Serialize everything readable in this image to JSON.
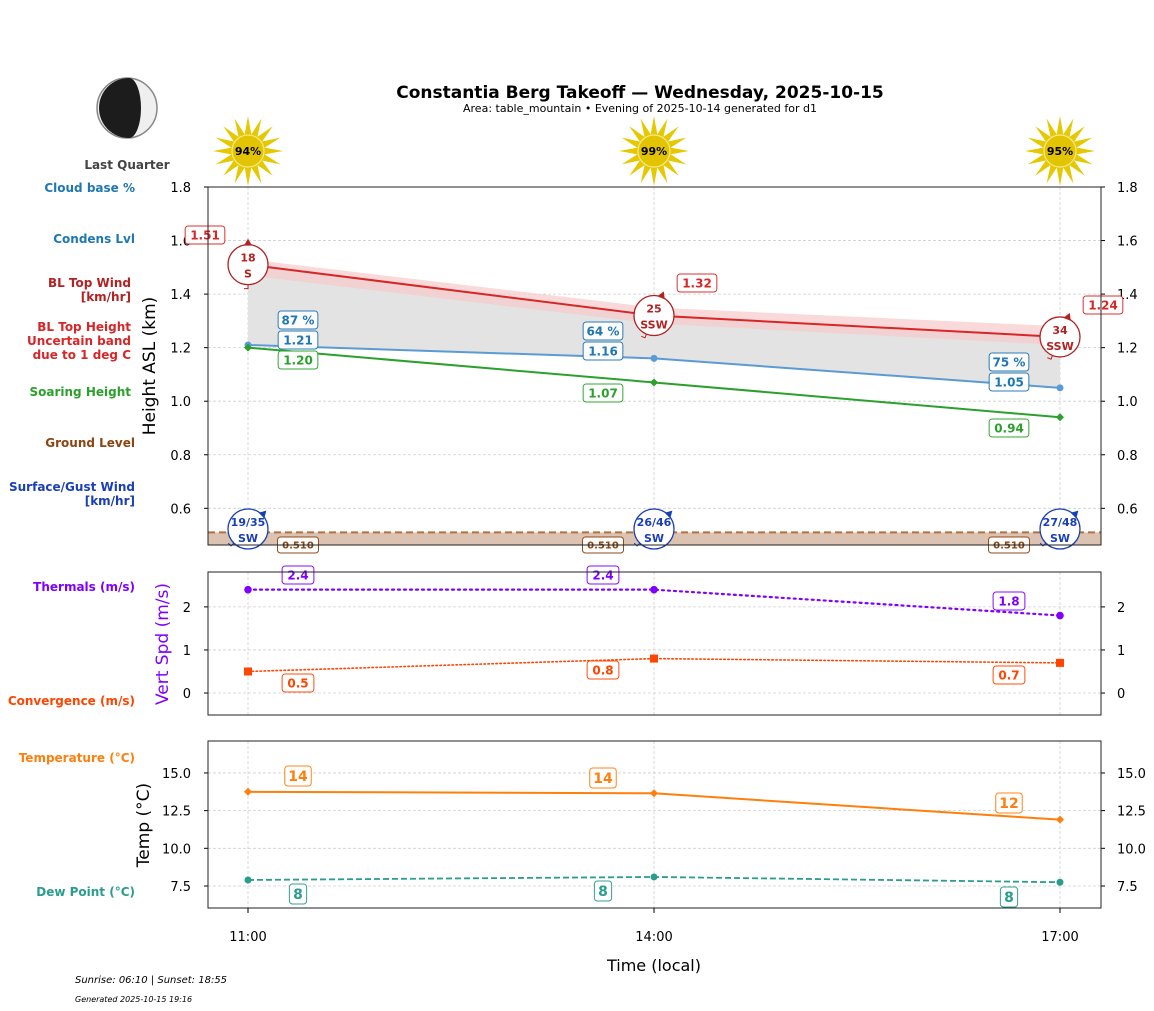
{
  "header": {
    "title": "Constantia Berg Takeoff — Wednesday, 2025-10-15",
    "subtitle": "Area: table_mountain • Evening of 2025-10-14 generated for d1",
    "moon_phase": "Last Quarter",
    "moon_icon": "moon-last-quarter-icon"
  },
  "row_labels": {
    "cloud_base": "Cloud base %",
    "condens": "Condens Lvl",
    "bl_wind_1": "BL Top Wind",
    "bl_wind_2": "[km/hr]",
    "bl_height_1": "BL Top Height",
    "bl_height_2": "Uncertain band",
    "bl_height_3": "due to 1 deg C",
    "soaring": "Soaring Height",
    "ground": "Ground Level",
    "surface_1": "Surface/Gust Wind",
    "surface_2": "[km/hr]",
    "thermals": "Thermals (m/s)",
    "convergence": "Convergence (m/s)",
    "temperature": "Temperature (°C)",
    "dewpoint": "Dew Point (°C)"
  },
  "colors": {
    "bl_top": "#d62728",
    "bl_band": "#f7c9c9",
    "condens": "#1f77b4",
    "condens_line": "#5b9bd5",
    "soaring": "#2ca02c",
    "ground": "#8b4513",
    "ground_fill": "#dcc2b0",
    "surface_wind": "#1a3fb5",
    "bl_wind": "#b22222",
    "thermals": "#7f00ff",
    "convergence": "#ff4500",
    "temperature": "#ff7f0e",
    "dewpoint": "#2a9d8f",
    "sun": "#e6c800",
    "grey_fill": "#e3e3e3"
  },
  "footer": {
    "sun_times": "Sunrise: 06:10 | Sunset: 18:55",
    "generated": "Generated 2025-10-15 19:16"
  },
  "chart_data": [
    {
      "type": "line",
      "name": "height-chart",
      "ylabel": "Height ASL (km)",
      "x": [
        "11:00",
        "14:00",
        "17:00"
      ],
      "ylim": [
        0.463,
        1.8
      ],
      "yticks": [
        "1.8",
        "1.6",
        "1.4",
        "1.2",
        "1.0",
        "0.8",
        "0.6"
      ],
      "ytick_values": [
        1.8,
        1.6,
        1.4,
        1.2,
        1.0,
        0.8,
        0.6
      ],
      "grid": true,
      "sun_percent": [
        "94%",
        "99%",
        "95%"
      ],
      "series": [
        {
          "name": "BL Top Height",
          "values": [
            1.51,
            1.32,
            1.24
          ],
          "labels": [
            "1.51",
            "1.32",
            "1.24"
          ],
          "band_upper": [
            1.53,
            1.35,
            1.28
          ],
          "band_lower": [
            1.47,
            1.29,
            1.21
          ]
        },
        {
          "name": "Condens Lvl",
          "values": [
            1.21,
            1.16,
            1.05
          ],
          "labels": [
            "1.21",
            "1.16",
            "1.05"
          ]
        },
        {
          "name": "Cloud base %",
          "values": [
            87,
            64,
            75
          ],
          "labels": [
            "87 %",
            "64 %",
            "75 %"
          ]
        },
        {
          "name": "Soaring Height",
          "values": [
            1.2,
            1.07,
            0.94
          ],
          "labels": [
            "1.20",
            "1.07",
            "0.94"
          ]
        },
        {
          "name": "Ground Level",
          "values": [
            0.51,
            0.51,
            0.51
          ],
          "labels": [
            "0.510",
            "0.510",
            "0.510"
          ]
        }
      ],
      "bl_top_wind": [
        {
          "speed": "18",
          "dir": "S",
          "deg": 180
        },
        {
          "speed": "25",
          "dir": "SSW",
          "deg": 202
        },
        {
          "speed": "34",
          "dir": "SSW",
          "deg": 202
        }
      ],
      "surface_wind": [
        {
          "speed": "19/35",
          "dir": "SW",
          "deg": 225
        },
        {
          "speed": "26/46",
          "dir": "SW",
          "deg": 225
        },
        {
          "speed": "27/48",
          "dir": "SW",
          "deg": 225
        }
      ]
    },
    {
      "type": "line",
      "name": "vertspeed-chart",
      "ylabel": "Vert Spd (m/s)",
      "x": [
        "11:00",
        "14:00",
        "17:00"
      ],
      "ylim": [
        -0.51,
        2.81
      ],
      "yticks": [
        "2",
        "1",
        "0"
      ],
      "ytick_values": [
        2,
        1,
        0
      ],
      "grid": true,
      "series": [
        {
          "name": "Thermals (m/s)",
          "values": [
            2.4,
            2.4,
            1.8
          ],
          "labels": [
            "2.4",
            "2.4",
            "1.8"
          ]
        },
        {
          "name": "Convergence (m/s)",
          "values": [
            0.5,
            0.8,
            0.7
          ],
          "labels": [
            "0.5",
            "0.8",
            "0.7"
          ]
        }
      ]
    },
    {
      "type": "line",
      "name": "temp-chart",
      "ylabel": "Temp (°C)",
      "xlabel": "Time (local)",
      "x": [
        "11:00",
        "14:00",
        "17:00"
      ],
      "ylim": [
        6.04,
        17.12
      ],
      "yticks": [
        "15.0",
        "12.5",
        "10.0",
        "7.5"
      ],
      "ytick_values": [
        15.0,
        12.5,
        10.0,
        7.5
      ],
      "grid": true,
      "series": [
        {
          "name": "Temperature (°C)",
          "values": [
            13.75,
            13.65,
            11.9
          ],
          "labels": [
            "14",
            "14",
            "12"
          ]
        },
        {
          "name": "Dew Point (°C)",
          "values": [
            7.9,
            8.1,
            7.75
          ],
          "labels": [
            "8",
            "8",
            "8"
          ]
        }
      ]
    }
  ]
}
